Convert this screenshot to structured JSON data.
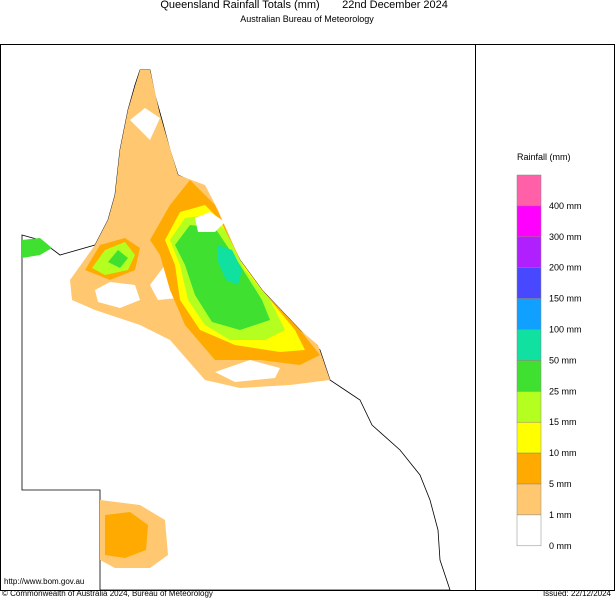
{
  "header": {
    "title": "Queensland Rainfall Totals (mm)",
    "date": "22nd December 2024",
    "subtitle": "Australian Bureau of Meteorology"
  },
  "legend": {
    "title": "Rainfall (mm)",
    "labels": [
      "400 mm",
      "300 mm",
      "200 mm",
      "150 mm",
      "100 mm",
      "50 mm",
      "25 mm",
      "15 mm",
      "10 mm",
      "5 mm",
      "1 mm",
      "0 mm"
    ],
    "colors": [
      "#ff60a8",
      "#ff00ff",
      "#b020ff",
      "#4848ff",
      "#10a0ff",
      "#10e0a0",
      "#40e030",
      "#b4ff20",
      "#ffff00",
      "#ffaa00",
      "#ffc870",
      "#ffffff"
    ]
  },
  "footer": {
    "url": "http://www.bom.gov.au",
    "copyright": "© Commonwealth of Australia 2024, Bureau of Meteorology",
    "issued": "Issued: 22/12/2024"
  }
}
